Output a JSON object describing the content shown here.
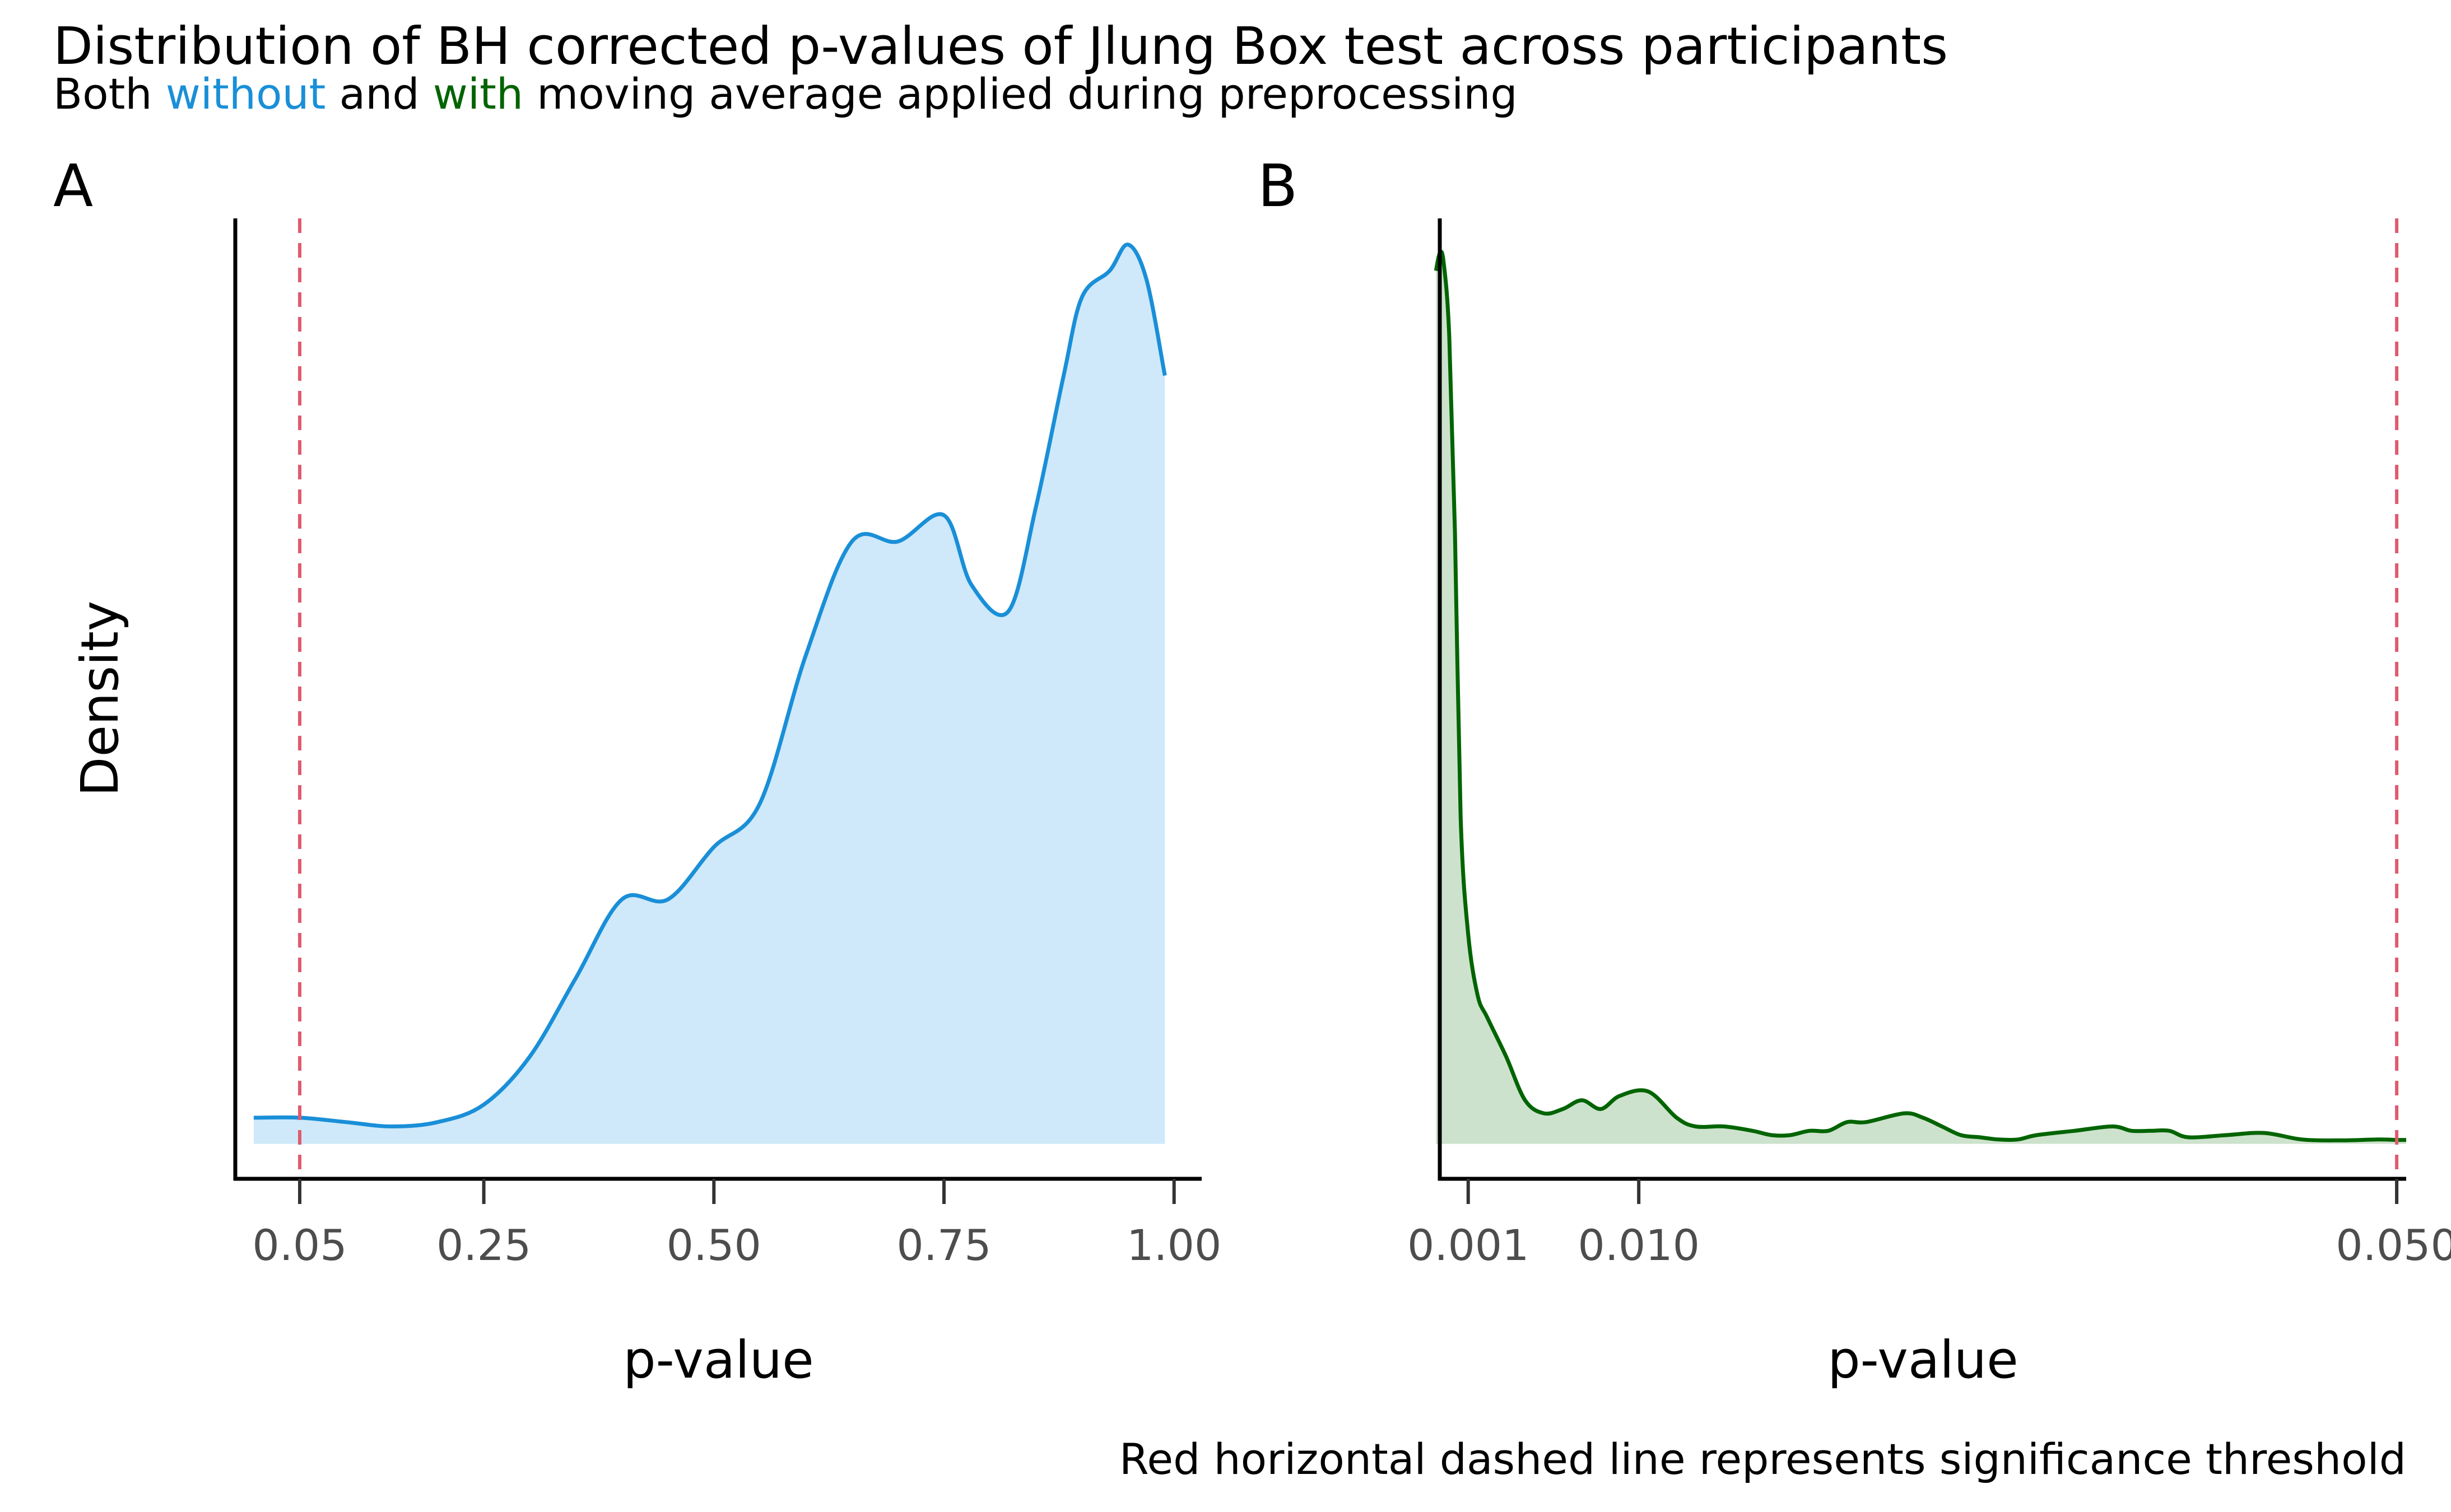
{
  "title": "Distribution of BH corrected p-values of Jlung Box test across participants",
  "subtitle": {
    "part1": "Both ",
    "without": "without",
    "part2": " and ",
    "with": "with",
    "part3": " moving average applied during preprocessing"
  },
  "caption": "Red horizontal dashed line represents significance threshold",
  "colors": {
    "without": "#1a8fd8",
    "without_fill": "#cfe9fa",
    "with": "#006400",
    "with_fill": "#cde2cd",
    "threshold": "#e05a6e"
  },
  "chart_data": [
    {
      "type": "area",
      "panel": "A",
      "xlabel": "p-value",
      "ylabel": "Density",
      "xlim": [
        -0.02,
        1.03
      ],
      "ylim": [
        -0.08,
        2.12
      ],
      "xticks": [
        0.05,
        0.25,
        0.5,
        0.75,
        1.0
      ],
      "xtick_labels": [
        "0.05",
        "0.25",
        "0.50",
        "0.75",
        "1.00"
      ],
      "threshold": 0.05,
      "series": [
        {
          "x": [
            0.0,
            0.05,
            0.1,
            0.15,
            0.2,
            0.25,
            0.3,
            0.35,
            0.4,
            0.45,
            0.5,
            0.55,
            0.6,
            0.65,
            0.7,
            0.75,
            0.78,
            0.82,
            0.85,
            0.88,
            0.9,
            0.93,
            0.95,
            0.97,
            0.99
          ],
          "y": [
            0.06,
            0.06,
            0.05,
            0.04,
            0.05,
            0.09,
            0.2,
            0.38,
            0.56,
            0.56,
            0.68,
            0.78,
            1.12,
            1.38,
            1.38,
            1.44,
            1.28,
            1.22,
            1.46,
            1.76,
            1.94,
            2.0,
            2.06,
            1.98,
            1.76
          ]
        }
      ]
    },
    {
      "type": "area",
      "panel": "B",
      "xlabel": "p-value",
      "ylabel": "Density",
      "xlim": [
        -0.0005,
        0.0505
      ],
      "ylim": [
        -0.08,
        2.12
      ],
      "xticks": [
        0.001,
        0.01,
        0.05
      ],
      "xtick_labels": [
        "0.001",
        "0.010",
        "0.050"
      ],
      "threshold": 0.05,
      "series": [
        {
          "x": [
            -0.0007,
            -0.0005,
            -0.0003,
            0.0,
            0.0003,
            0.0006,
            0.001,
            0.0015,
            0.002,
            0.003,
            0.004,
            0.005,
            0.006,
            0.007,
            0.008,
            0.009,
            0.0105,
            0.012,
            0.013,
            0.0145,
            0.016,
            0.017,
            0.018,
            0.019,
            0.02,
            0.021,
            0.022,
            0.024,
            0.025,
            0.026,
            0.027,
            0.028,
            0.029,
            0.03,
            0.031,
            0.033,
            0.035,
            0.036,
            0.037,
            0.038,
            0.039,
            0.041,
            0.043,
            0.045,
            0.047,
            0.049,
            0.05,
            0.0505
          ],
          "y": [
            2.0,
            2.04,
            2.02,
            1.85,
            1.4,
            0.75,
            0.48,
            0.34,
            0.29,
            0.2,
            0.1,
            0.07,
            0.08,
            0.1,
            0.08,
            0.11,
            0.12,
            0.06,
            0.04,
            0.04,
            0.03,
            0.02,
            0.02,
            0.03,
            0.03,
            0.05,
            0.05,
            0.07,
            0.06,
            0.04,
            0.02,
            0.015,
            0.01,
            0.01,
            0.02,
            0.03,
            0.04,
            0.03,
            0.03,
            0.03,
            0.015,
            0.02,
            0.025,
            0.01,
            0.008,
            0.01,
            0.009,
            0.009
          ]
        }
      ]
    }
  ]
}
